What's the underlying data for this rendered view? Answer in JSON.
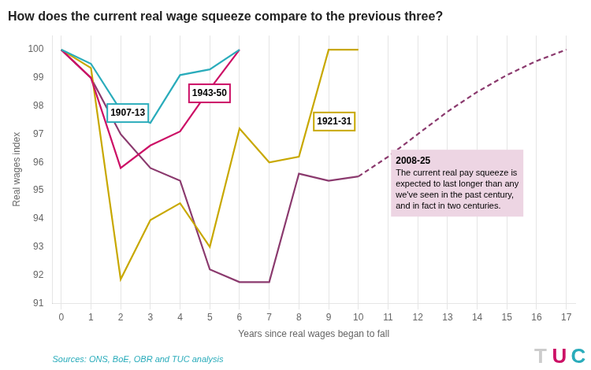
{
  "chart_data": {
    "type": "line",
    "title": "How does the current real wage squeeze compare to the previous three?",
    "xlabel": "Years since real wages began to fall",
    "ylabel": "Real wages index",
    "source": "Sources: ONS, BoE, OBR and TUC analysis",
    "xlim": [
      -0.3,
      17.3
    ],
    "ylim": [
      91,
      100.5
    ],
    "xticks": [
      0,
      1,
      2,
      3,
      4,
      5,
      6,
      7,
      8,
      9,
      10,
      11,
      12,
      13,
      14,
      15,
      16,
      17
    ],
    "yticks": [
      91,
      92,
      93,
      94,
      95,
      96,
      97,
      98,
      99,
      100
    ],
    "grid": "x",
    "series": [
      {
        "name": "1907-13",
        "color": "#2AACBB",
        "x": [
          0,
          1,
          2,
          3,
          4,
          5,
          6
        ],
        "values": [
          100,
          99.5,
          97.85,
          97.4,
          99.1,
          99.3,
          100
        ]
      },
      {
        "name": "1943-50",
        "color": "#CC1066",
        "x": [
          0,
          1,
          2,
          3,
          4,
          5,
          6
        ],
        "values": [
          100,
          99.0,
          95.8,
          96.6,
          97.1,
          98.6,
          100
        ]
      },
      {
        "name": "1921-31",
        "color": "#C8A800",
        "x": [
          0,
          1,
          2,
          3,
          4,
          5,
          6,
          7,
          8,
          9,
          10
        ],
        "values": [
          100,
          99.35,
          91.85,
          93.95,
          94.55,
          93.0,
          97.2,
          96.0,
          96.2,
          100.0,
          100.0
        ]
      },
      {
        "name": "2008-25",
        "color": "#8B3A6E",
        "x": [
          0,
          1,
          2,
          3,
          4,
          5,
          6,
          7,
          8,
          9,
          10,
          11,
          12,
          13,
          14,
          15,
          16,
          17
        ],
        "values": [
          100,
          99.0,
          97.0,
          95.8,
          95.35,
          92.2,
          91.75,
          91.75,
          95.6,
          95.35,
          95.5,
          96.2,
          97.0,
          97.8,
          98.5,
          99.1,
          99.6,
          100.0
        ],
        "dashed_from": 10
      }
    ],
    "annotations": [
      {
        "text": "1907-13",
        "x": 1.55,
        "y": 97.75,
        "color": "#2AACBB"
      },
      {
        "text": "1943-50",
        "x": 4.3,
        "y": 98.45,
        "color": "#CC1066"
      },
      {
        "text": "1921-31",
        "x": 8.5,
        "y": 97.45,
        "color": "#C8A800"
      },
      {
        "title": "2008-25",
        "text": "The current real pay squeeze is\nexpected to last longer than any\nwe've seen in the past century,\nand in fact in two centuries.",
        "x": 11.1,
        "y": 96.45,
        "color": "#EDD5E3"
      }
    ],
    "logo": [
      {
        "text": "T",
        "color": "#CCCCCC"
      },
      {
        "text": "U",
        "color": "#CC1066"
      },
      {
        "text": "C",
        "color": "#2AACBB"
      }
    ]
  }
}
